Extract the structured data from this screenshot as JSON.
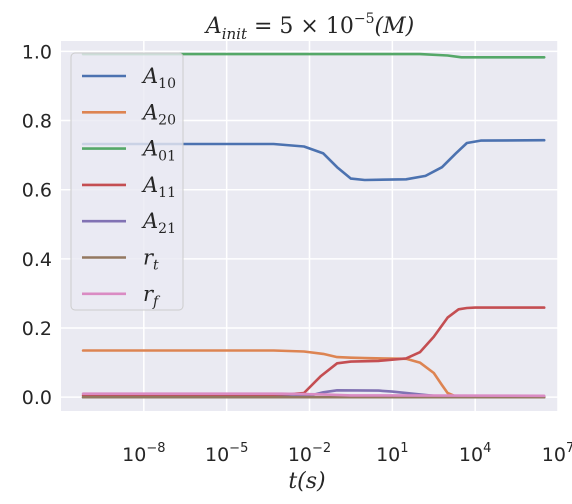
{
  "chart_data": {
    "type": "line",
    "title": {
      "base": "A",
      "sub": "init",
      "rest": " = 5 × 10",
      "sup": "−5",
      "tail": "(M)"
    },
    "xlabel": "t(s)",
    "x_scale": "log",
    "xlim_log10": [
      -11,
      7
    ],
    "ylim": [
      -0.04,
      1.03
    ],
    "x_ticks": [
      {
        "exp": -8,
        "base": "10",
        "sup": "−8"
      },
      {
        "exp": -5,
        "base": "10",
        "sup": "−5"
      },
      {
        "exp": -2,
        "base": "10",
        "sup": "−2"
      },
      {
        "exp": 1,
        "base": "10",
        "sup": "1"
      },
      {
        "exp": 4,
        "base": "10",
        "sup": "4"
      },
      {
        "exp": 7,
        "base": "10",
        "sup": "7"
      }
    ],
    "y_ticks": [
      "0.0",
      "0.2",
      "0.4",
      "0.6",
      "0.8",
      "1.0"
    ],
    "y_tick_values": [
      0.0,
      0.2,
      0.4,
      0.6,
      0.8,
      1.0
    ],
    "grid": true,
    "legend_position": "upper-left",
    "series": [
      {
        "name": "A10",
        "base": "A",
        "sub": "10",
        "color": "#4c72b0",
        "x_log10": [
          -10.2,
          -3.3,
          -2.2,
          -1.5,
          -1.0,
          -0.5,
          0.0,
          1.5,
          2.2,
          2.8,
          3.3,
          3.7,
          4.2,
          6.5
        ],
        "y": [
          0.732,
          0.732,
          0.725,
          0.705,
          0.665,
          0.632,
          0.628,
          0.63,
          0.64,
          0.665,
          0.705,
          0.735,
          0.742,
          0.743
        ]
      },
      {
        "name": "A20",
        "base": "A",
        "sub": "20",
        "color": "#dd8452",
        "x_log10": [
          -10.2,
          -3.3,
          -2.2,
          -1.5,
          -1.0,
          -0.5,
          0.0,
          1.5,
          2.0,
          2.5,
          2.8,
          3.0,
          3.3,
          6.5
        ],
        "y": [
          0.135,
          0.135,
          0.132,
          0.125,
          0.116,
          0.114,
          0.113,
          0.111,
          0.1,
          0.07,
          0.035,
          0.012,
          0.002,
          0.0
        ]
      },
      {
        "name": "A01",
        "base": "A",
        "sub": "01",
        "color": "#55a868",
        "x_log10": [
          -10.2,
          -8.0,
          2.0,
          3.0,
          3.5,
          6.5
        ],
        "y": [
          0.992,
          0.992,
          0.992,
          0.988,
          0.983,
          0.983
        ]
      },
      {
        "name": "A11",
        "base": "A",
        "sub": "11",
        "color": "#c44e52",
        "x_log10": [
          -10.2,
          -3.3,
          -2.2,
          -1.6,
          -1.0,
          -0.5,
          0.5,
          1.5,
          2.0,
          2.5,
          3.0,
          3.4,
          3.7,
          4.0,
          6.5
        ],
        "y": [
          0.005,
          0.005,
          0.012,
          0.06,
          0.098,
          0.103,
          0.105,
          0.112,
          0.13,
          0.175,
          0.23,
          0.254,
          0.258,
          0.259,
          0.259
        ]
      },
      {
        "name": "A21",
        "base": "A",
        "sub": "21",
        "color": "#8172b3",
        "x_log10": [
          -10.2,
          -3.3,
          -2.0,
          -1.5,
          -1.0,
          0.5,
          1.0,
          2.0,
          2.5,
          3.0,
          6.5
        ],
        "y": [
          0.0,
          0.0,
          0.004,
          0.014,
          0.02,
          0.019,
          0.016,
          0.008,
          0.004,
          0.001,
          0.0
        ]
      },
      {
        "name": "rt",
        "base": "r",
        "sub": "t",
        "color": "#937860",
        "x_log10": [
          -10.2,
          6.5
        ],
        "y": [
          0.0,
          0.0
        ]
      },
      {
        "name": "rf",
        "base": "r",
        "sub": "f",
        "color": "#da8bc3",
        "x_log10": [
          -10.2,
          -3.0,
          -1.5,
          -0.5,
          6.5
        ],
        "y": [
          0.01,
          0.01,
          0.008,
          0.005,
          0.004
        ]
      }
    ]
  }
}
